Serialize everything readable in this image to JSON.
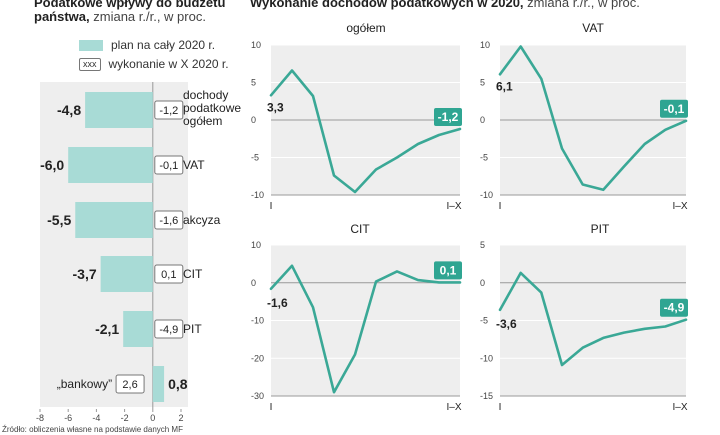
{
  "left": {
    "title_bold": "Podatkowe wpływy do budżetu",
    "title_bold_2": "państwa,",
    "title_rest": "zmiana r./r., w proc.",
    "legend_plan": "plan na cały 2020 r.",
    "legend_done_box": "xxx",
    "legend_done": "wykonanie w X 2020 r."
  },
  "right": {
    "title_bold": "Wykonanie dochodów podatkowych w 2020,",
    "title_rest": "zmiana r./r., w proc."
  },
  "source": "Źródło: obliczenia własne na podstawie danych MF",
  "colors": {
    "bar": "#a8dbd6",
    "line": "#3aa896",
    "label_bg": "#2fa592",
    "panel_bg": "#eeeeee"
  },
  "chart_data": [
    {
      "type": "bar",
      "orientation": "horizontal",
      "title": "Podatkowe wpływy do budżetu państwa, zmiana r./r., w proc.",
      "categories": [
        "dochody podatkowe ogółem",
        "VAT",
        "akcyza",
        "CIT",
        "PIT",
        "„bankowy”"
      ],
      "series": [
        {
          "name": "plan na cały 2020 r.",
          "values": [
            -4.8,
            -6.0,
            -5.5,
            -3.7,
            -2.1,
            0.8
          ]
        },
        {
          "name": "wykonanie w X 2020 r.",
          "values": [
            -1.2,
            -0.1,
            -1.6,
            0.1,
            -4.9,
            2.6
          ]
        }
      ],
      "plan_labels": [
        "-4,8",
        "-6,0",
        "-5,5",
        "-3,7",
        "-2,1",
        "0,8"
      ],
      "done_labels": [
        "-1,2",
        "-0,1",
        "-1,6",
        "0,1",
        "-4,9",
        "2,6"
      ],
      "xlim": [
        -8,
        2
      ],
      "xticks": [
        -8,
        -6,
        -4,
        -2,
        0,
        2
      ],
      "xtick_labels": [
        "-8",
        "-6",
        "-4",
        "-2",
        "0",
        "2"
      ]
    },
    {
      "type": "line",
      "title": "ogółem",
      "x": [
        "I",
        "II",
        "III",
        "IV",
        "V",
        "VI",
        "VII",
        "VIII",
        "IX",
        "X"
      ],
      "values": [
        3.3,
        6.6,
        3.2,
        -7.4,
        -9.6,
        -6.6,
        -5.0,
        -3.2,
        -2.0,
        -1.2
      ],
      "start_label": "3,3",
      "end_label": "-1,2",
      "ylim": [
        -10,
        10
      ],
      "yticks": [
        10,
        5,
        0,
        -5,
        -10
      ],
      "ytick_labels": [
        "10",
        "5",
        "0",
        "-5",
        "-10"
      ],
      "x_start_label": "I",
      "x_end_label": "I–X"
    },
    {
      "type": "line",
      "title": "VAT",
      "x": [
        "I",
        "II",
        "III",
        "IV",
        "V",
        "VI",
        "VII",
        "VIII",
        "IX",
        "X"
      ],
      "values": [
        6.1,
        9.8,
        5.5,
        -3.8,
        -8.6,
        -9.3,
        -6.2,
        -3.2,
        -1.3,
        -0.1
      ],
      "start_label": "6,1",
      "end_label": "-0,1",
      "ylim": [
        -10,
        10
      ],
      "yticks": [
        10,
        5,
        0,
        -5,
        -10
      ],
      "ytick_labels": [
        "10",
        "5",
        "0",
        "-5",
        "-10"
      ],
      "x_start_label": "I",
      "x_end_label": "I–X"
    },
    {
      "type": "line",
      "title": "CIT",
      "x": [
        "I",
        "II",
        "III",
        "IV",
        "V",
        "VI",
        "VII",
        "VIII",
        "IX",
        "X"
      ],
      "values": [
        -1.6,
        4.5,
        -6.5,
        -29.0,
        -19.0,
        0.3,
        3.0,
        0.7,
        0.1,
        0.1
      ],
      "start_label": "-1,6",
      "end_label": "0,1",
      "ylim": [
        -30,
        10
      ],
      "yticks": [
        10,
        0,
        -10,
        -20,
        -30
      ],
      "ytick_labels": [
        "10",
        "0",
        "-10",
        "-20",
        "-30"
      ],
      "x_start_label": "I",
      "x_end_label": "I–X"
    },
    {
      "type": "line",
      "title": "PIT",
      "x": [
        "I",
        "II",
        "III",
        "IV",
        "V",
        "VI",
        "VII",
        "VIII",
        "IX",
        "X"
      ],
      "values": [
        -3.6,
        1.3,
        -1.3,
        -10.9,
        -8.6,
        -7.3,
        -6.6,
        -6.1,
        -5.8,
        -4.9
      ],
      "start_label": "-3,6",
      "end_label": "-4,9",
      "ylim": [
        -15,
        5
      ],
      "yticks": [
        5,
        0,
        -5,
        -10,
        -15
      ],
      "ytick_labels": [
        "5",
        "0",
        "-5",
        "-10",
        "-15"
      ],
      "x_start_label": "I",
      "x_end_label": "I–X"
    }
  ]
}
